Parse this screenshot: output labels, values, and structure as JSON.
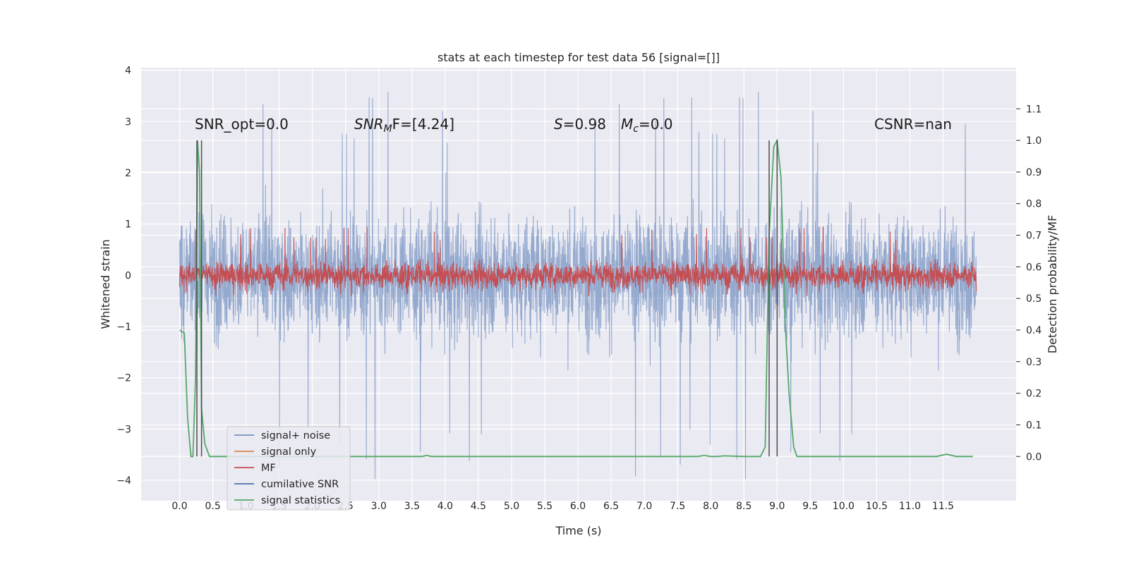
{
  "chart_data": {
    "type": "line",
    "title": "stats at each timestep for test data 56 [signal=[]]",
    "xlabel": "Time (s)",
    "ylabel": "Whitened strain",
    "y2label": "Detection probability/MF",
    "xlim": [
      -0.58,
      12.6
    ],
    "ylim": [
      -4.4,
      4.05
    ],
    "y2lim": [
      -0.14,
      1.23
    ],
    "x_ticks": [
      0.0,
      0.5,
      1.0,
      1.5,
      2.0,
      2.5,
      3.0,
      3.5,
      4.0,
      4.5,
      5.0,
      5.5,
      6.0,
      6.5,
      7.0,
      7.5,
      8.0,
      8.5,
      9.0,
      9.5,
      10.0,
      10.5,
      11.0,
      11.5
    ],
    "x_tick_labels": [
      "0.0",
      "0.5",
      "1.0",
      "1.5",
      "2.0",
      "2.5",
      "3.0",
      "3.5",
      "4.0",
      "4.5",
      "5.0",
      "5.5",
      "6.0",
      "6.5",
      "7.0",
      "7.5",
      "8.0",
      "8.5",
      "9.0",
      "9.5",
      "10.0",
      "10.5",
      "11.0",
      "11.5"
    ],
    "y_ticks": [
      -4,
      -3,
      -2,
      -1,
      0,
      1,
      2,
      3,
      4
    ],
    "y_tick_labels": [
      "−4",
      "−3",
      "−2",
      "−1",
      "0",
      "1",
      "2",
      "3",
      "4"
    ],
    "y2_ticks": [
      0.0,
      0.1,
      0.2,
      0.3,
      0.4,
      0.5,
      0.6,
      0.7,
      0.8,
      0.9,
      1.0,
      1.1
    ],
    "y2_tick_labels": [
      "0.0",
      "0.1",
      "0.2",
      "0.3",
      "0.4",
      "0.5",
      "0.6",
      "0.7",
      "0.8",
      "0.9",
      "1.0",
      "1.1"
    ],
    "grid": true,
    "legend_position": "lower-left",
    "annotations": {
      "snr_opt": "SNR_opt=0.0",
      "snr_mf_sym": "SNR",
      "snr_mf_sub": "M",
      "snr_mf_rest": "F=[4.24]",
      "s_sym": "S",
      "s_val": "=0.98",
      "mc_sym": "M",
      "mc_sub": "c",
      "mc_val": "=0.0",
      "csnr": "CSNR=nan"
    },
    "series": [
      {
        "name": "signal+ noise",
        "color": "#4c72b0",
        "opacity": 0.55,
        "axis": "left",
        "x_range": [
          0.0,
          12.0
        ],
        "typical_amplitude": 1.6,
        "peak_high": 3.65,
        "peak_low": -4.1
      },
      {
        "name": "signal only",
        "color": "#dd8452",
        "axis": "left",
        "values": []
      },
      {
        "name": "MF",
        "color": "#c44e52",
        "axis": "left",
        "x_range": [
          0.0,
          12.0
        ],
        "typical_amplitude": 0.35,
        "peak_high": 0.97,
        "peak_low": -0.42
      },
      {
        "name": "cumilative SNR",
        "color": "#4c72b0",
        "axis": "right",
        "values": []
      },
      {
        "name": "signal statistics",
        "color": "#55a868",
        "axis": "right",
        "x": [
          0.0,
          0.07,
          0.12,
          0.17,
          0.2,
          0.24,
          0.27,
          0.3,
          0.33,
          0.38,
          0.45,
          0.6,
          1.0,
          2.0,
          3.0,
          3.65,
          3.72,
          3.8,
          4.0,
          5.0,
          6.0,
          7.0,
          7.8,
          7.9,
          8.0,
          8.1,
          8.2,
          8.5,
          8.75,
          8.82,
          8.88,
          8.95,
          9.0,
          9.06,
          9.12,
          9.18,
          9.25,
          9.3,
          9.4,
          10.0,
          11.0,
          11.4,
          11.55,
          11.7,
          11.95
        ],
        "values": [
          0.4,
          0.39,
          0.12,
          0.0,
          0.0,
          0.25,
          1.0,
          0.9,
          0.15,
          0.04,
          0.0,
          0.0,
          0.0,
          0.0,
          0.0,
          0.0,
          0.003,
          0.0,
          0.0,
          0.0,
          0.0,
          0.0,
          0.0,
          0.003,
          0.0,
          0.0,
          0.002,
          0.0,
          0.0,
          0.03,
          0.7,
          0.98,
          1.0,
          0.88,
          0.43,
          0.2,
          0.03,
          0.0,
          0.0,
          0.0,
          0.0,
          0.0,
          0.007,
          0.0,
          0.0
        ]
      }
    ],
    "markers": [
      {
        "x": 0.26,
        "color": "#4d4d4d"
      },
      {
        "x": 0.33,
        "color": "#4d4d4d"
      },
      {
        "x": 8.88,
        "color": "#4d4d4d"
      },
      {
        "x": 9.0,
        "color": "#4d4d4d"
      }
    ],
    "colors": {
      "plot_background": "#eaeaf2",
      "grid": "#ffffff",
      "legend_background": "#eaeaf2",
      "legend_border": "#cccccc"
    }
  }
}
